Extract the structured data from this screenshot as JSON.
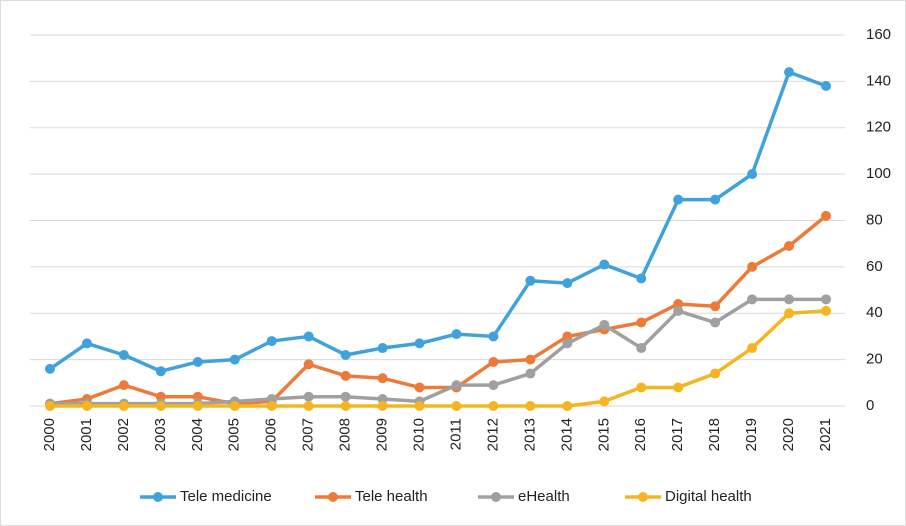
{
  "chart_data": {
    "type": "line",
    "categories": [
      "2000",
      "2001",
      "2002",
      "2003",
      "2004",
      "2005",
      "2006",
      "2007",
      "2008",
      "2009",
      "2010",
      "2011",
      "2012",
      "2013",
      "2014",
      "2015",
      "2016",
      "2017",
      "2018",
      "2019",
      "2020",
      "2021"
    ],
    "series": [
      {
        "name": "Tele medicine",
        "color": "#3fa2dc",
        "values": [
          16,
          27,
          22,
          15,
          19,
          20,
          28,
          30,
          22,
          25,
          27,
          31,
          30,
          54,
          53,
          61,
          55,
          89,
          89,
          100,
          144,
          138
        ]
      },
      {
        "name": "Tele health",
        "color": "#ee7a3a",
        "values": [
          1,
          3,
          9,
          4,
          4,
          1,
          2,
          18,
          13,
          12,
          8,
          8,
          19,
          20,
          30,
          33,
          36,
          44,
          43,
          60,
          69,
          82
        ]
      },
      {
        "name": "eHealth",
        "color": "#a0a0a0",
        "values": [
          1,
          1,
          1,
          1,
          1,
          2,
          3,
          4,
          4,
          3,
          2,
          9,
          9,
          14,
          27,
          35,
          25,
          41,
          36,
          46,
          46,
          46
        ]
      },
      {
        "name": "Digital health",
        "color": "#f5b521",
        "values": [
          0,
          0,
          0,
          0,
          0,
          0,
          0,
          0,
          0,
          0,
          0,
          0,
          0,
          0,
          0,
          2,
          8,
          8,
          14,
          25,
          40,
          41
        ]
      }
    ],
    "ylim": [
      0,
      160
    ],
    "yticks": [
      0,
      20,
      40,
      60,
      80,
      100,
      120,
      140,
      160
    ],
    "grid": true,
    "legend": "bottom"
  }
}
